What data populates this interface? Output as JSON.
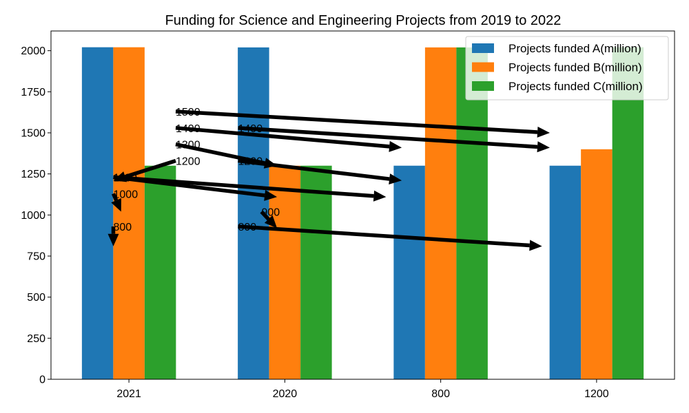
{
  "chart_data": {
    "type": "bar",
    "title": "Funding for Science and Engineering Projects from 2019 to 2022",
    "categories": [
      "2021",
      "2020",
      "800",
      "1200"
    ],
    "series": [
      {
        "name": "Projects funded A(million)",
        "values": [
          2021,
          2020,
          1300,
          1300
        ],
        "color": "#1f77b4"
      },
      {
        "name": "Projects funded B(million)",
        "values": [
          2021,
          1300,
          2020,
          1400
        ],
        "color": "#ff7f0e"
      },
      {
        "name": "Projects funded C(million)",
        "values": [
          1300,
          1300,
          2020,
          2021
        ],
        "color": "#2ca02c"
      }
    ],
    "ylim": [
      0,
      2120
    ],
    "yticks": [
      0,
      250,
      500,
      750,
      1000,
      1250,
      1500,
      1750,
      2000
    ],
    "legend_position": "top-right",
    "grid": false,
    "annotations": [
      {
        "text": "1500",
        "x": 0.3,
        "y": 1630,
        "arrow_to": [
          2.7,
          1500
        ]
      },
      {
        "text": "1400",
        "x": 0.3,
        "y": 1530,
        "arrow_to": [
          1.75,
          1410
        ]
      },
      {
        "text": "1300",
        "x": 0.3,
        "y": 1430,
        "arrow_to": [
          0.95,
          1300
        ]
      },
      {
        "text": "1200",
        "x": 0.3,
        "y": 1330,
        "arrow_to": [
          -0.1,
          1210
        ]
      },
      {
        "text": "1100",
        "x": -0.1,
        "y": 1230,
        "arrow_to": [
          0.95,
          1110
        ]
      },
      {
        "text": "1000",
        "x": -0.1,
        "y": 1130,
        "arrow_to": [
          -0.05,
          1020
        ]
      },
      {
        "text": "800",
        "x": -0.1,
        "y": 930,
        "arrow_to": [
          -0.1,
          810
        ]
      },
      {
        "text": "1400",
        "x": 0.7,
        "y": 1530,
        "arrow_to": [
          2.7,
          1410
        ]
      },
      {
        "text": "1200",
        "x": 0.7,
        "y": 1330,
        "arrow_to": [
          1.75,
          1210
        ]
      },
      {
        "text": "1100",
        "x": -0.1,
        "y": 1230,
        "arrow_to": [
          1.65,
          1110
        ]
      },
      {
        "text": "900",
        "x": 0.85,
        "y": 1020,
        "arrow_to": [
          0.95,
          920
        ]
      },
      {
        "text": "800",
        "x": 0.7,
        "y": 930,
        "arrow_to": [
          2.65,
          810
        ]
      }
    ]
  }
}
